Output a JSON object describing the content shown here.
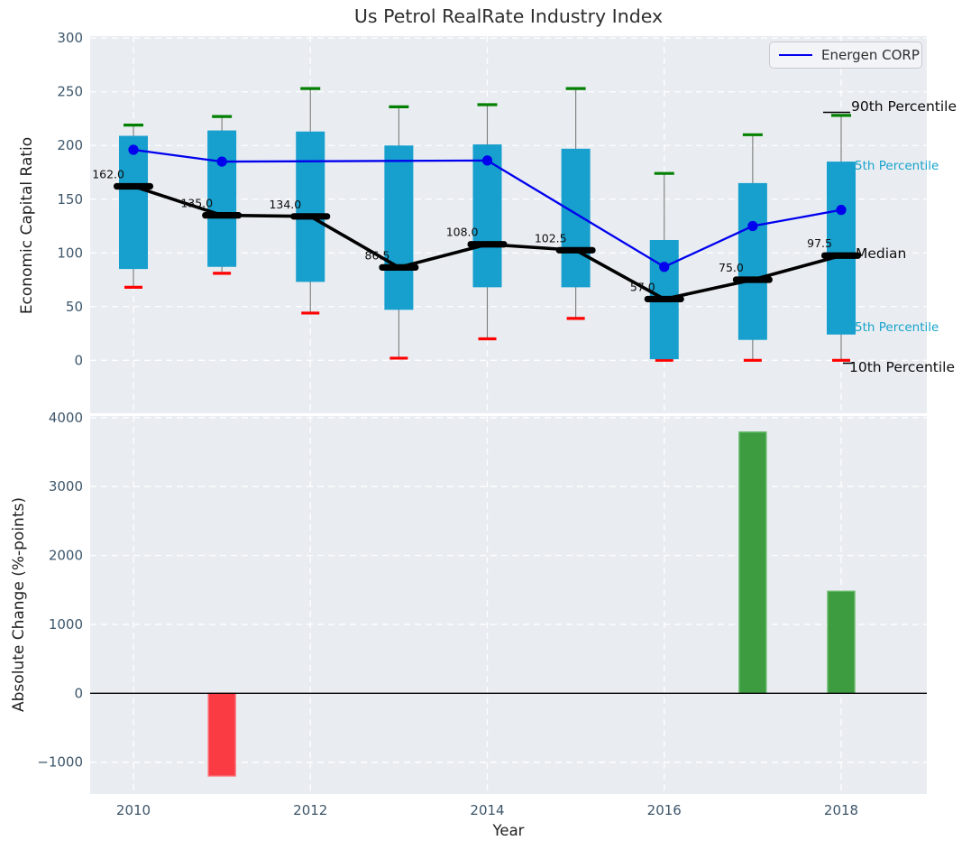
{
  "title": "Us Petrol RealRate Industry Index",
  "legend": {
    "label": "Energen CORP"
  },
  "annotations": {
    "p90_label": "90th Percentile",
    "p75_label": "5th Percentile",
    "median_label": "Median",
    "p25_label": "5th Percentile",
    "p10_label": "10th Percentile"
  },
  "top_chart": {
    "ylabel": "Economic Capital Ratio"
  },
  "bottom_chart": {
    "ylabel": "Absolute Change (%-points)",
    "xlabel": "Year"
  },
  "chart_data": [
    {
      "type": "box",
      "title": "Us Petrol RealRate Industry Index",
      "ylabel": "Economic Capital Ratio",
      "ylim": [
        -50,
        302
      ],
      "grid": true,
      "yticks": [
        300,
        250,
        200,
        150,
        100,
        50,
        0
      ],
      "xticks": [
        2010,
        2012,
        2014,
        2016,
        2018
      ],
      "years": [
        2010,
        2011,
        2012,
        2013,
        2014,
        2015,
        2016,
        2017,
        2018
      ],
      "boxes": [
        {
          "year": 2010,
          "p10": 68,
          "q1": 85,
          "median": 162.0,
          "q3": 209,
          "p90": 219,
          "label": "162.0"
        },
        {
          "year": 2011,
          "p10": 81,
          "q1": 87,
          "median": 135.0,
          "q3": 214,
          "p90": 227,
          "label": "135.0"
        },
        {
          "year": 2012,
          "p10": 44,
          "q1": 73,
          "median": 134.0,
          "q3": 213,
          "p90": 253,
          "label": "134.0"
        },
        {
          "year": 2013,
          "p10": 2,
          "q1": 47,
          "median": 86.5,
          "q3": 200,
          "p90": 236,
          "label": "86.5"
        },
        {
          "year": 2014,
          "p10": 20,
          "q1": 68,
          "median": 108.0,
          "q3": 201,
          "p90": 238,
          "label": "108.0"
        },
        {
          "year": 2015,
          "p10": 39,
          "q1": 68,
          "median": 102.5,
          "q3": 197,
          "p90": 253,
          "label": "102.5"
        },
        {
          "year": 2016,
          "p10": 0,
          "q1": 1,
          "median": 57.0,
          "q3": 112,
          "p90": 174,
          "label": "57.0"
        },
        {
          "year": 2017,
          "p10": 0,
          "q1": 19,
          "median": 75.0,
          "q3": 165,
          "p90": 210,
          "label": "75.0"
        },
        {
          "year": 2018,
          "p10": 0,
          "q1": 24,
          "median": 97.5,
          "q3": 185,
          "p90": 228,
          "label": "97.5"
        }
      ],
      "series": [
        {
          "name": "Energen CORP",
          "points": [
            {
              "x": 2010,
              "y": 196
            },
            {
              "x": 2011,
              "y": 185
            },
            {
              "x": 2014,
              "y": 186
            },
            {
              "x": 2016,
              "y": 87
            },
            {
              "x": 2017,
              "y": 125
            },
            {
              "x": 2018,
              "y": 140
            }
          ]
        }
      ],
      "legend_position": "upper right"
    },
    {
      "type": "bar",
      "ylabel": "Absolute Change (%-points)",
      "xlabel": "Year",
      "ylim": [
        -1460,
        4040
      ],
      "grid": true,
      "yticks": [
        4000,
        3000,
        2000,
        1000,
        0,
        -1000
      ],
      "xticks": [
        2010,
        2012,
        2014,
        2016,
        2018
      ],
      "bars": [
        {
          "year": 2011,
          "value": -1200
        },
        {
          "year": 2017,
          "value": 3790
        },
        {
          "year": 2018,
          "value": 1480
        }
      ]
    }
  ],
  "colors": {
    "box_fill": "#179fcd",
    "whisker": "#7a7a7a",
    "cap_p90": "#008000",
    "cap_p10": "#ff0000",
    "median": "#000000",
    "energen_line": "#0000ee",
    "bar_positive": "#3d9c40",
    "bar_positive_edge": "#66b969",
    "bar_negative": "#fa3b44",
    "bar_negative_edge": "#fc7176",
    "axes_bg": "#e9edf1",
    "grid": "#ffffff",
    "tick_label": "#3d566b",
    "zero_line": "#000000"
  }
}
